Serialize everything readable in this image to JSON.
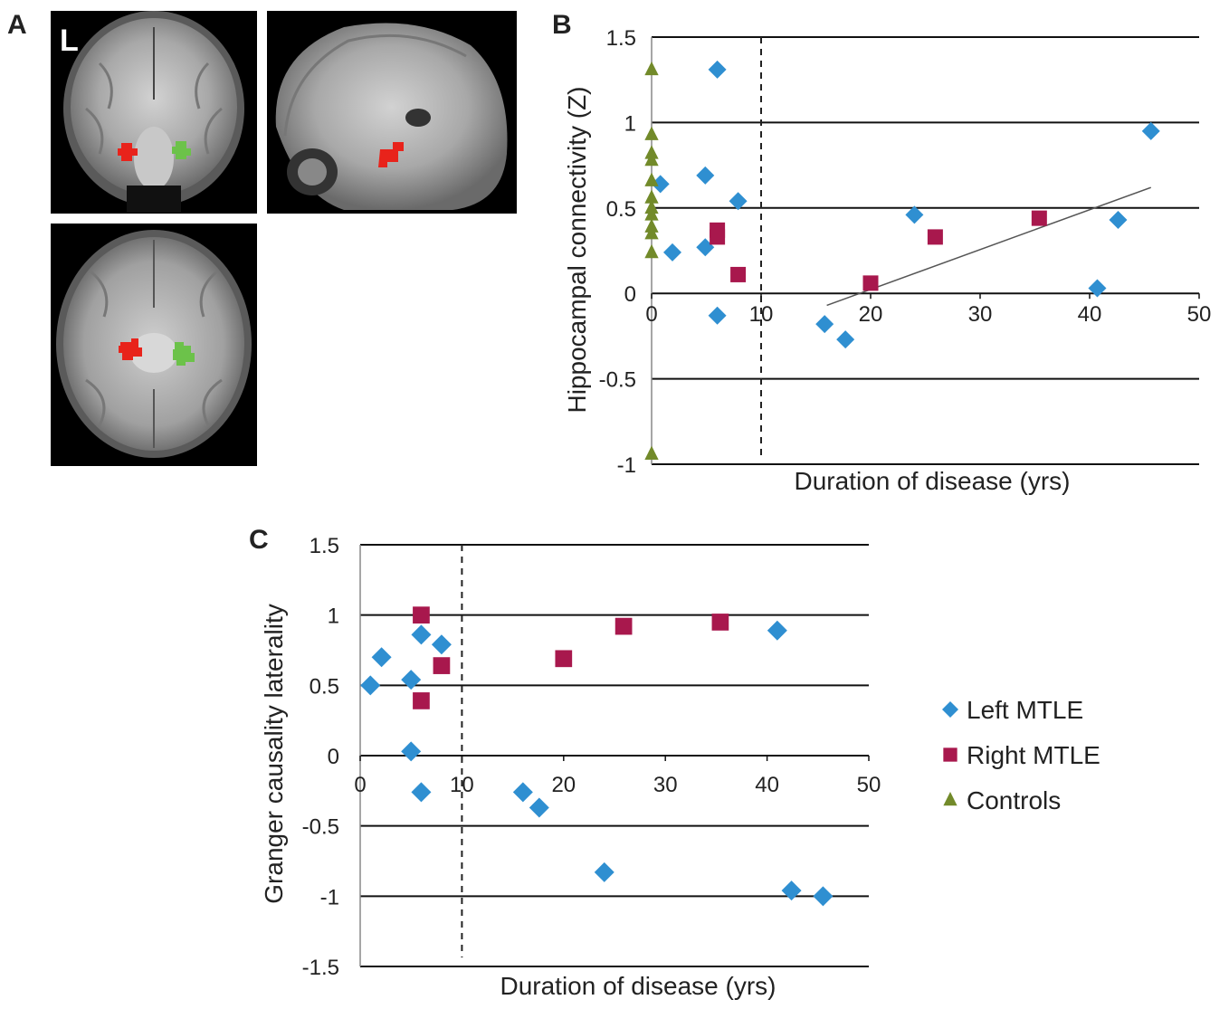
{
  "panel_labels": {
    "a": "A",
    "b": "B",
    "c": "C"
  },
  "panel_a": {
    "orientation_label": "L"
  },
  "colors": {
    "left_mtle": "#2f8fd1",
    "right_mtle": "#a8184d",
    "controls": "#728a2a",
    "roi_left": "#e8231b",
    "roi_right": "#6cc24a"
  },
  "legend": {
    "items": [
      {
        "label": "Left MTLE",
        "marker": "diamond",
        "color": "#2f8fd1"
      },
      {
        "label": "Right MTLE",
        "marker": "square",
        "color": "#a8184d"
      },
      {
        "label": "Controls",
        "marker": "triangle",
        "color": "#728a2a"
      }
    ]
  },
  "chart_data": [
    {
      "panel": "B",
      "type": "scatter",
      "xlabel": "Duration of disease (yrs)",
      "ylabel": "Hippocampal connectivity (Z)",
      "xlim": [
        0,
        50
      ],
      "ylim": [
        -1,
        1.5
      ],
      "xticks": [
        "0",
        "10",
        "20",
        "30",
        "40",
        "50"
      ],
      "yticks": [
        "1.5",
        "1",
        "0.5",
        "0",
        "-0.5",
        "-1"
      ],
      "grid": "horizontal",
      "reference_line_x": 10,
      "series": [
        {
          "name": "Left MTLE",
          "marker": "diamond",
          "points": [
            [
              0.8,
              0.64
            ],
            [
              1.9,
              0.24
            ],
            [
              4.9,
              0.69
            ],
            [
              4.9,
              0.27
            ],
            [
              6.0,
              1.31
            ],
            [
              6.0,
              -0.13
            ],
            [
              7.9,
              0.54
            ],
            [
              15.8,
              -0.18
            ],
            [
              17.7,
              -0.27
            ],
            [
              24.0,
              0.46
            ],
            [
              40.7,
              0.03
            ],
            [
              42.6,
              0.43
            ],
            [
              45.6,
              0.95
            ]
          ]
        },
        {
          "name": "Right MTLE",
          "marker": "square",
          "points": [
            [
              6.0,
              0.37
            ],
            [
              6.0,
              0.33
            ],
            [
              7.9,
              0.11
            ],
            [
              20.0,
              0.06
            ],
            [
              25.9,
              0.33
            ],
            [
              35.4,
              0.44
            ]
          ]
        },
        {
          "name": "Controls",
          "marker": "triangle",
          "points": [
            [
              0,
              1.31
            ],
            [
              0,
              0.93
            ],
            [
              0,
              0.82
            ],
            [
              0,
              0.78
            ],
            [
              0,
              0.66
            ],
            [
              0,
              0.56
            ],
            [
              0,
              0.5
            ],
            [
              0,
              0.46
            ],
            [
              0,
              0.39
            ],
            [
              0,
              0.35
            ],
            [
              0,
              0.24
            ],
            [
              0,
              -0.94
            ]
          ]
        }
      ],
      "trendline": {
        "x": [
          16,
          45.6
        ],
        "y": [
          -0.07,
          0.62
        ]
      }
    },
    {
      "panel": "C",
      "type": "scatter",
      "xlabel": "Duration of disease (yrs)",
      "ylabel": "Granger causality laterality",
      "xlim": [
        0,
        50
      ],
      "ylim": [
        -1.5,
        1.5
      ],
      "xticks": [
        "0",
        "10",
        "20",
        "30",
        "40",
        "50"
      ],
      "yticks": [
        "1.5",
        "1",
        "0.5",
        "0",
        "-0.5",
        "-1",
        "-1.5"
      ],
      "grid": "horizontal",
      "reference_line_x": 10,
      "series": [
        {
          "name": "Left MTLE",
          "marker": "diamond",
          "points": [
            [
              1.0,
              0.5
            ],
            [
              2.1,
              0.7
            ],
            [
              5.0,
              0.54
            ],
            [
              5.0,
              0.03
            ],
            [
              6.0,
              0.86
            ],
            [
              6.0,
              -0.26
            ],
            [
              8.0,
              0.79
            ],
            [
              16.0,
              -0.26
            ],
            [
              17.6,
              -0.37
            ],
            [
              24.0,
              -0.83
            ],
            [
              41.0,
              0.89
            ],
            [
              42.4,
              -0.96
            ],
            [
              45.5,
              -1.0
            ]
          ]
        },
        {
          "name": "Right MTLE",
          "marker": "square",
          "points": [
            [
              6.0,
              1.0
            ],
            [
              6.0,
              0.39
            ],
            [
              8.0,
              0.64
            ],
            [
              20.0,
              0.69
            ],
            [
              25.9,
              0.92
            ],
            [
              35.4,
              0.95
            ]
          ]
        }
      ],
      "legend_position": "right"
    }
  ]
}
